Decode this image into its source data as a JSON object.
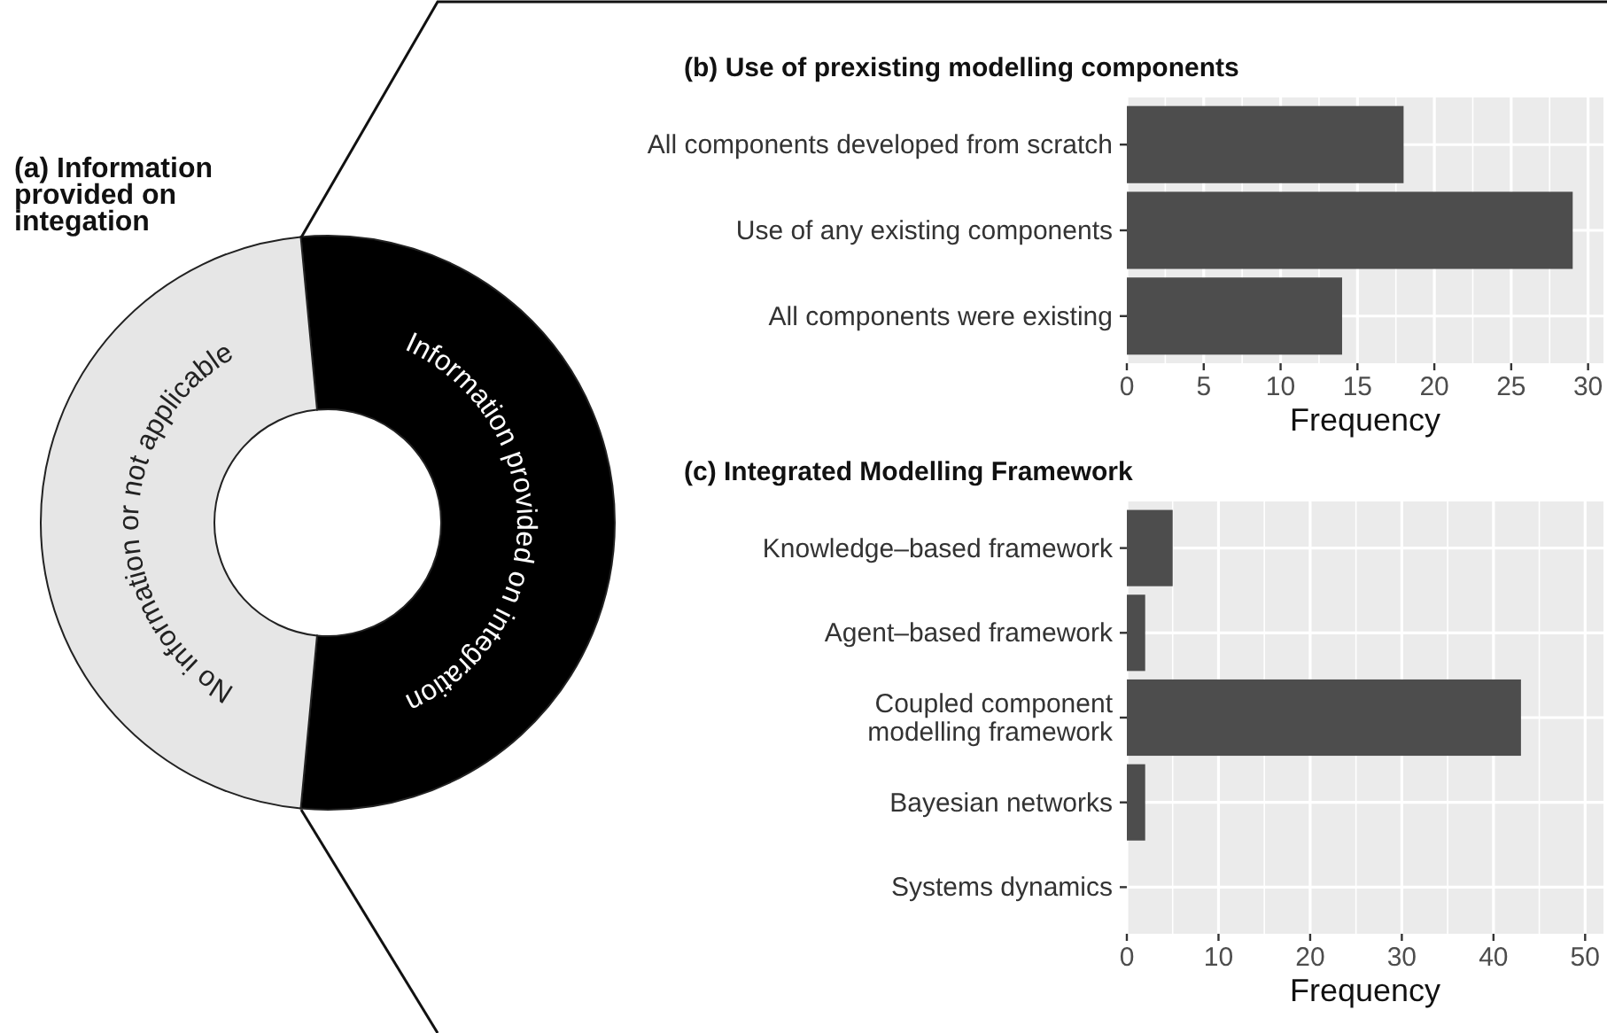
{
  "chart_data": [
    {
      "type": "donut",
      "title": "(a) Information provided on integation",
      "categories": [
        "Information provided on integration",
        "No information or not applicable"
      ],
      "values": [
        53,
        47
      ],
      "colors": [
        "#000000",
        "#e6e6e6"
      ]
    },
    {
      "type": "bar",
      "orientation": "horizontal",
      "title": "(b) Use of prexisting modelling components",
      "categories": [
        "All components developed from scratch",
        "Use of any existing components",
        "All components were existing"
      ],
      "values": [
        18,
        29,
        14
      ],
      "color": "#4d4d4d",
      "xlabel": "Frequency",
      "xlim": [
        0,
        31
      ],
      "xticks": [
        0,
        5,
        10,
        15,
        20,
        25,
        30
      ],
      "grid": true
    },
    {
      "type": "bar",
      "orientation": "horizontal",
      "title": "(c) Integrated Modelling Framework",
      "categories": [
        "Knowledge–based framework",
        "Agent–based framework",
        "Coupled component\nmodelling framework",
        "Bayesian networks",
        "Systems dynamics"
      ],
      "values": [
        5,
        2,
        43,
        2,
        0
      ],
      "color": "#4d4d4d",
      "xlabel": "Frequency",
      "xlim": [
        0,
        52
      ],
      "xticks": [
        0,
        10,
        20,
        30,
        40,
        50
      ],
      "grid": true
    }
  ]
}
